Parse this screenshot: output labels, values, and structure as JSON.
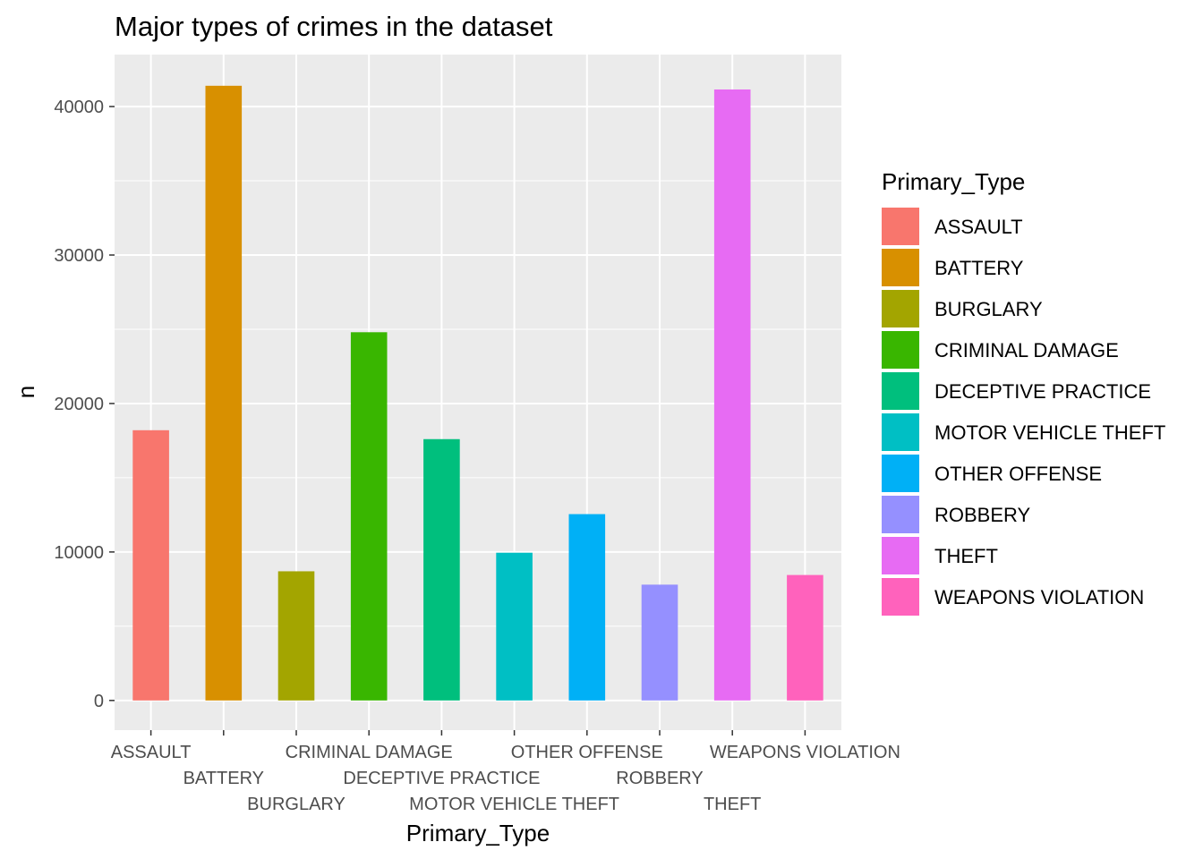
{
  "chart_data": {
    "type": "bar",
    "title": "Major types of crimes in the dataset",
    "xlabel": "Primary_Type",
    "ylabel": "n",
    "categories": [
      "ASSAULT",
      "BATTERY",
      "BURGLARY",
      "CRIMINAL DAMAGE",
      "DECEPTIVE PRACTICE",
      "MOTOR VEHICLE THEFT",
      "OTHER OFFENSE",
      "ROBBERY",
      "THEFT",
      "WEAPONS VIOLATION"
    ],
    "values": [
      18200,
      41400,
      8700,
      24800,
      17600,
      9950,
      12550,
      7800,
      41150,
      8450
    ],
    "colors": [
      "#F8766D",
      "#D89000",
      "#A3A500",
      "#39B600",
      "#00BF7D",
      "#00BFC4",
      "#00B0F6",
      "#9590FF",
      "#E76BF3",
      "#FF62BC"
    ],
    "y_ticks": [
      0,
      10000,
      20000,
      30000,
      40000
    ],
    "ylim": [
      -2000,
      43500
    ],
    "grid": true,
    "legend": {
      "title": "Primary_Type",
      "placement": "right"
    }
  }
}
